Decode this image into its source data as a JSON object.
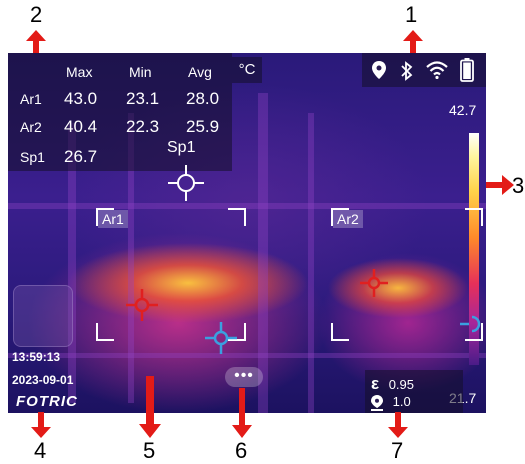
{
  "annotations": {
    "n1": "1",
    "n2": "2",
    "n3": "3",
    "n4": "4",
    "n5": "5",
    "n6": "6",
    "n7": "7"
  },
  "stats": {
    "headers": [
      "Max",
      "Min",
      "Avg"
    ],
    "unit": "°C",
    "rows": [
      {
        "label": "Ar1",
        "max": "43.0",
        "min": "23.1",
        "avg": "28.0"
      },
      {
        "label": "Ar2",
        "max": "40.4",
        "min": "22.3",
        "avg": "25.9"
      }
    ],
    "spot": {
      "label": "Sp1",
      "value": "26.7"
    }
  },
  "status_icons": [
    "location-icon",
    "bluetooth-icon",
    "wifi-icon",
    "battery-icon"
  ],
  "scale": {
    "max": "42.7",
    "min": "21.7"
  },
  "rois": {
    "ar1": "Ar1",
    "ar2": "Ar2",
    "sp1": "Sp1"
  },
  "info": {
    "time": "13:59:13",
    "date": "2023-09-01",
    "brand": "FOTRIC"
  },
  "params": {
    "emissivity_symbol": "ε",
    "emissivity": "0.95",
    "distance": "1.0"
  },
  "more_label": "•••",
  "colors": {
    "annotation_arrow": "#e31b17",
    "hot_marker": "#e02020",
    "cold_marker": "#3aa0e0"
  }
}
